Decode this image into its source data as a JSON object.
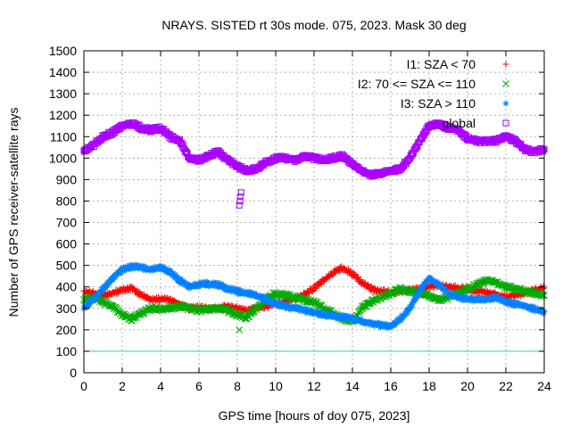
{
  "chart_data": {
    "type": "scatter",
    "title": "NRAYS. SISTED rt 30s mode. 075, 2023. Mask 30 deg",
    "xlabel": "GPS time [hours of doy 075, 2023]",
    "ylabel": "Number of GPS receiver-satellite rays",
    "xlim": [
      0,
      24
    ],
    "ylim": [
      0,
      1500
    ],
    "xticks": [
      "0",
      "2",
      "4",
      "6",
      "8",
      "10",
      "12",
      "14",
      "16",
      "18",
      "20",
      "22",
      "24"
    ],
    "yticks": [
      "0",
      "100",
      "200",
      "300",
      "400",
      "500",
      "600",
      "700",
      "800",
      "900",
      "1000",
      "1100",
      "1200",
      "1300",
      "1400",
      "1500"
    ],
    "grid": true,
    "legend_position": "top-right",
    "reference_line": {
      "y": 100,
      "color": "#33cccc"
    },
    "series": [
      {
        "name": "I1: SZA < 70",
        "marker": "+",
        "color": "#ff0000",
        "x": [
          0,
          0.5,
          1,
          1.5,
          2,
          2.5,
          3,
          3.5,
          4,
          4.5,
          5,
          5.5,
          6,
          6.5,
          7,
          7.5,
          8,
          8.5,
          9,
          9.5,
          10,
          10.5,
          11,
          11.5,
          12,
          12.5,
          13,
          13.5,
          14,
          14.5,
          15,
          15.5,
          16,
          16.5,
          17,
          17.5,
          18,
          18.5,
          19,
          19.5,
          20,
          20.5,
          21,
          21.5,
          22,
          22.5,
          23,
          23.5,
          24
        ],
        "values": [
          380,
          370,
          360,
          370,
          385,
          395,
          360,
          340,
          345,
          340,
          320,
          300,
          305,
          300,
          300,
          310,
          300,
          290,
          300,
          310,
          320,
          330,
          345,
          365,
          395,
          430,
          465,
          490,
          460,
          420,
          390,
          380,
          375,
          380,
          385,
          390,
          400,
          405,
          400,
          395,
          390,
          380,
          375,
          365,
          355,
          360,
          370,
          385,
          395
        ]
      },
      {
        "name": "I2: 70 <= SZA <= 110",
        "marker": "x",
        "color": "#00aa00",
        "x": [
          0,
          0.5,
          1,
          1.5,
          2,
          2.5,
          3,
          3.5,
          4,
          4.5,
          5,
          5.5,
          6,
          6.5,
          7,
          7.5,
          8,
          8.5,
          9,
          9.5,
          10,
          10.5,
          11,
          11.5,
          12,
          12.5,
          13,
          13.5,
          14,
          14.5,
          15,
          15.5,
          16,
          16.5,
          17,
          17.5,
          18,
          18.5,
          19,
          19.5,
          20,
          20.5,
          21,
          21.5,
          22,
          22.5,
          23,
          23.5,
          24
        ],
        "values": [
          340,
          350,
          330,
          310,
          270,
          250,
          280,
          300,
          295,
          300,
          310,
          300,
          290,
          295,
          300,
          290,
          270,
          260,
          300,
          340,
          370,
          360,
          350,
          340,
          330,
          300,
          275,
          250,
          240,
          300,
          330,
          350,
          370,
          390,
          380,
          370,
          360,
          340,
          350,
          370,
          390,
          410,
          430,
          420,
          400,
          390,
          380,
          370,
          360
        ]
      },
      {
        "name": "I3: SZA > 110",
        "marker": "*",
        "color": "#0080ff",
        "x": [
          0,
          0.5,
          1,
          1.5,
          2,
          2.5,
          3,
          3.5,
          4,
          4.5,
          5,
          5.5,
          6,
          6.5,
          7,
          7.5,
          8,
          8.5,
          9,
          9.5,
          10,
          10.5,
          11,
          11.5,
          12,
          12.5,
          13,
          13.5,
          14,
          14.5,
          15,
          15.5,
          16,
          16.5,
          17,
          17.5,
          18,
          18.5,
          19,
          19.5,
          20,
          20.5,
          21,
          21.5,
          22,
          22.5,
          23,
          23.5,
          24
        ],
        "values": [
          300,
          340,
          390,
          440,
          480,
          495,
          490,
          480,
          490,
          470,
          430,
          400,
          410,
          415,
          410,
          390,
          380,
          370,
          360,
          340,
          320,
          310,
          300,
          290,
          280,
          270,
          265,
          260,
          250,
          240,
          230,
          220,
          215,
          250,
          300,
          380,
          440,
          410,
          370,
          350,
          345,
          340,
          345,
          350,
          330,
          320,
          310,
          295,
          285
        ]
      },
      {
        "name": "global",
        "marker": "square",
        "color": "#aa00ff",
        "x": [
          0,
          0.5,
          1,
          1.5,
          2,
          2.5,
          3,
          3.5,
          4,
          4.5,
          5,
          5.5,
          6,
          6.5,
          7,
          7.5,
          8,
          8.5,
          9,
          9.5,
          10,
          10.5,
          11,
          11.5,
          12,
          12.5,
          13,
          13.5,
          14,
          14.5,
          15,
          15.5,
          16,
          16.5,
          17,
          17.5,
          18,
          18.5,
          19,
          19.5,
          20,
          20.5,
          21,
          21.5,
          22,
          22.5,
          23,
          23.5,
          24
        ],
        "values": [
          1030,
          1060,
          1100,
          1120,
          1150,
          1160,
          1140,
          1130,
          1140,
          1100,
          1080,
          1000,
          990,
          1010,
          1030,
          990,
          960,
          940,
          950,
          980,
          1000,
          1000,
          990,
          1010,
          1000,
          990,
          1000,
          1010,
          970,
          940,
          920,
          930,
          940,
          950,
          1000,
          1080,
          1150,
          1160,
          1140,
          1130,
          1090,
          1080,
          1080,
          1080,
          1100,
          1080,
          1040,
          1030,
          1040
        ]
      }
    ],
    "outliers": [
      {
        "series": "I2: 70 <= SZA <= 110",
        "x": 8.1,
        "value": 200
      },
      {
        "series": "global",
        "x": 8.1,
        "value": 780
      },
      {
        "series": "global",
        "x": 8.15,
        "value": 800
      },
      {
        "series": "global",
        "x": 8.15,
        "value": 820
      },
      {
        "series": "global",
        "x": 8.2,
        "value": 840
      }
    ]
  }
}
